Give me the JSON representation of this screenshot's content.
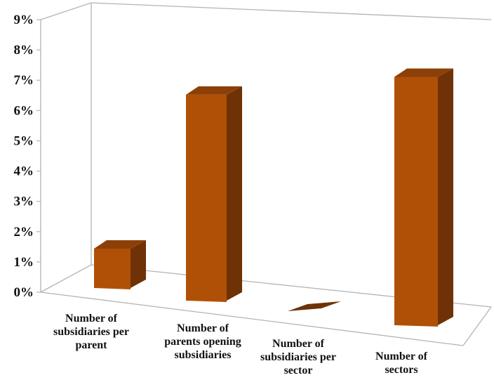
{
  "chart_data": {
    "type": "bar",
    "style": "3d-column",
    "categories": [
      [
        "Number of",
        "subsidiaries per",
        "parent"
      ],
      [
        "Number of",
        "parents opening",
        "subsidiaries"
      ],
      [
        "Number of",
        "subsidiaries per",
        "sector"
      ],
      [
        "Number of",
        "sectors"
      ]
    ],
    "values": [
      1.3,
      6.8,
      0.0,
      8.2
    ],
    "y_ticks": [
      "0%",
      "1%",
      "2%",
      "3%",
      "4%",
      "5%",
      "6%",
      "7%",
      "8%",
      "9%"
    ],
    "ylim": [
      0,
      9
    ],
    "title": "",
    "xlabel": "",
    "ylabel": "",
    "grid": false,
    "legend": "none",
    "colors": {
      "bar_front": "#b05006",
      "bar_side": "#6e3206",
      "bar_top": "#8c4008",
      "axis_line": "#b4b4b4"
    }
  }
}
